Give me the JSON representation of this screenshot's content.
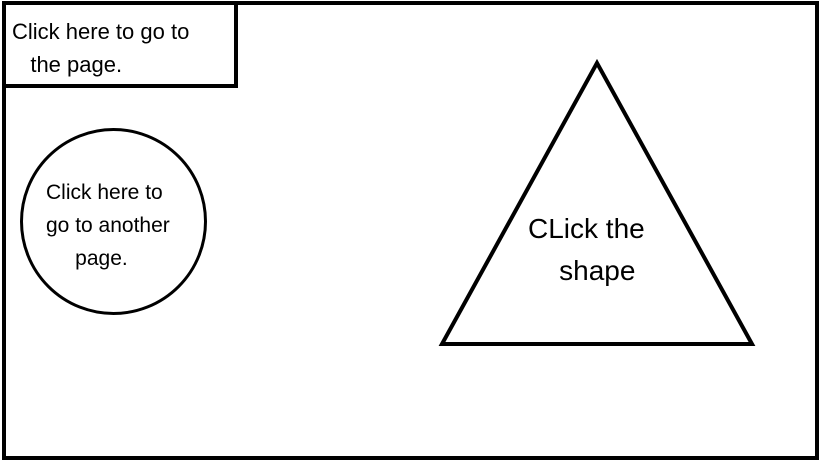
{
  "top_link": {
    "label": "Click here to go to\n   the page."
  },
  "circle_link": {
    "label": "Click here to\ngo to another\n     page."
  },
  "triangle_link": {
    "label": "CLick the\n    shape"
  },
  "colors": {
    "stroke": "#000000",
    "background": "#ffffff"
  }
}
